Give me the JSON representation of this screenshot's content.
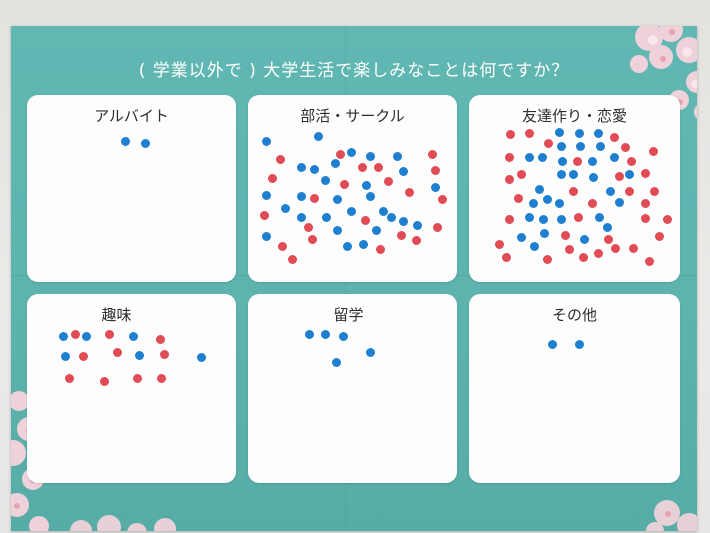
{
  "poster": {
    "title": "( 学業以外で ) 大学生活で楽しみなことは何ですか？",
    "colors": {
      "background": "#5fb5b0",
      "card": "#fdfdfd",
      "blue_dot": "#1f7fd1",
      "red_dot": "#e14b55"
    }
  },
  "cards": [
    {
      "id": "part-time",
      "label": "アルバイト",
      "blue_dots": 2,
      "red_dots": 0
    },
    {
      "id": "club",
      "label": "部活・サークル",
      "blue_dots": 30,
      "red_dots": 22
    },
    {
      "id": "friends",
      "label": "友達作り・恋愛",
      "blue_dots": 32,
      "red_dots": 34
    },
    {
      "id": "hobby",
      "label": "趣味",
      "blue_dots": 7,
      "red_dots": 10
    },
    {
      "id": "study-abroad",
      "label": "留学",
      "blue_dots": 5,
      "red_dots": 0
    },
    {
      "id": "other",
      "label": "その他",
      "blue_dots": 2,
      "red_dots": 0
    }
  ]
}
